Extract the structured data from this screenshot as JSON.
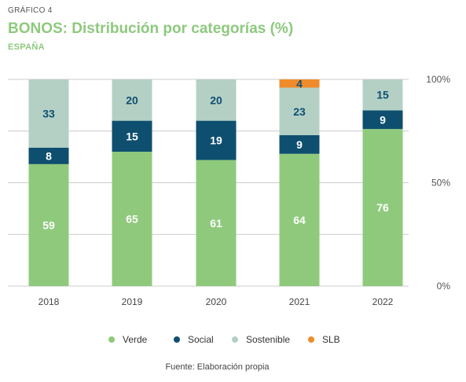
{
  "header": {
    "kicker": "GRÁFICO 4",
    "title": "BONOS: Distribución por categorías (%)",
    "subtitle": "ESPAÑA"
  },
  "colors": {
    "Verde": "#8fca7c",
    "Social": "#0e4f70",
    "Sostenible": "#b4d0c5",
    "SLB": "#f08b2b",
    "grid": "#cccccc",
    "axis_text": "#555555"
  },
  "chart_data": {
    "type": "bar",
    "stacked": true,
    "title": "BONOS: Distribución por categorías (%)",
    "categories": [
      "2018",
      "2019",
      "2020",
      "2021",
      "2022"
    ],
    "series": [
      {
        "name": "Verde",
        "values": [
          59,
          65,
          61,
          64,
          76
        ]
      },
      {
        "name": "Social",
        "values": [
          8,
          15,
          19,
          9,
          9
        ]
      },
      {
        "name": "Sostenible",
        "values": [
          33,
          20,
          20,
          23,
          15
        ]
      },
      {
        "name": "SLB",
        "values": [
          0,
          0,
          0,
          4,
          0
        ]
      }
    ],
    "ylim": [
      0,
      100
    ],
    "y_ticks": [
      0,
      50,
      100
    ],
    "y_tick_labels": [
      "0%",
      "50%",
      "100%"
    ],
    "grid": true,
    "legend_position": "bottom"
  },
  "legend": [
    "Verde",
    "Social",
    "Sostenible",
    "SLB"
  ],
  "source": "Fuente: Elaboración propia"
}
